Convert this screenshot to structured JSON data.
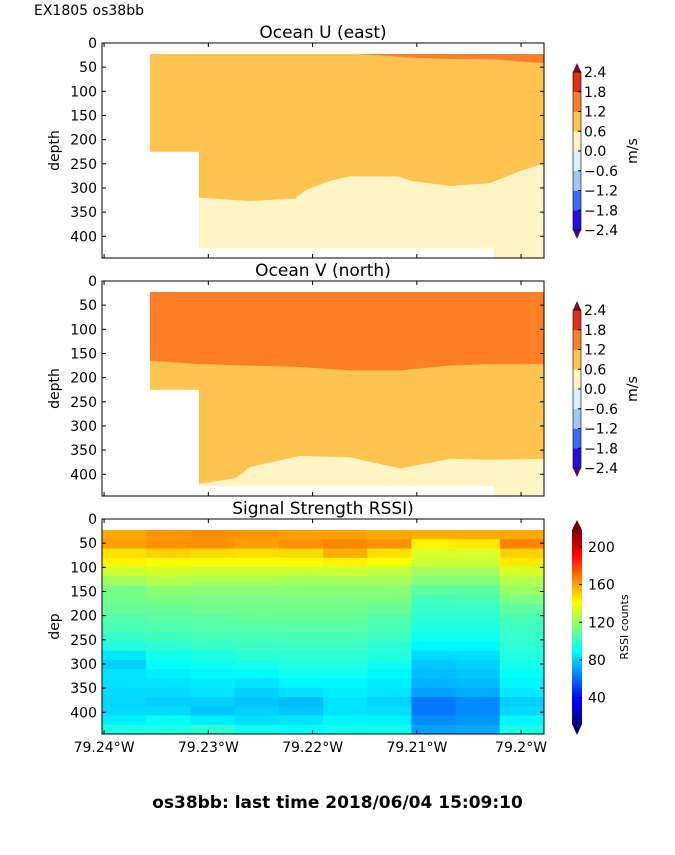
{
  "header": {
    "title": "EX1805 os38bb"
  },
  "footer": {
    "text": "os38bb: last time 2018/06/04 15:09:10"
  },
  "chart_data": [
    {
      "type": "area",
      "title": "Ocean U (east)",
      "ylabel": "depth",
      "xlim": [
        79.2402,
        79.1978
      ],
      "ylim": [
        445,
        0
      ],
      "yticks": [
        "0",
        "50",
        "100",
        "150",
        "200",
        "250",
        "300",
        "350",
        "400"
      ],
      "ytick_values": [
        0,
        50,
        100,
        150,
        200,
        250,
        300,
        350,
        400
      ],
      "xtick_values": [
        79.24,
        79.23,
        79.22,
        79.21,
        79.2
      ],
      "data_region": [
        [
          79.2356,
          22.8
        ],
        [
          79.1978,
          22.8
        ],
        [
          79.1978,
          445
        ],
        [
          79.2026,
          445
        ],
        [
          79.2026,
          425
        ],
        [
          79.2309,
          425
        ],
        [
          79.2309,
          225
        ],
        [
          79.2356,
          225
        ]
      ],
      "bands": [
        {
          "range": [
            0.0,
            0.6
          ],
          "color": "#fff5c4",
          "lower_boundary": "bottom"
        },
        {
          "range": [
            0.6,
            1.2
          ],
          "color": "#ffc34f",
          "lower_boundary": [
            [
              79.2356,
              320
            ],
            [
              79.2309,
              320
            ],
            [
              79.226,
              327
            ],
            [
              79.2217,
              322
            ],
            [
              79.2207,
              305
            ],
            [
              79.2183,
              285
            ],
            [
              79.2164,
              276
            ],
            [
              79.2118,
              276
            ],
            [
              79.2106,
              285
            ],
            [
              79.2068,
              296
            ],
            [
              79.203,
              290
            ],
            [
              79.2001,
              265
            ],
            [
              79.1978,
              250
            ]
          ]
        },
        {
          "range": [
            1.2,
            1.8
          ],
          "color": "#fe7f26",
          "lower_boundary": [
            [
              79.2356,
              22.8
            ],
            [
              79.2156,
              22.8
            ],
            [
              79.2106,
              30
            ],
            [
              79.2068,
              33
            ],
            [
              79.2026,
              34
            ],
            [
              79.1978,
              42
            ]
          ]
        }
      ],
      "colorbar": {
        "label": "m/s",
        "ticks": [
          "2.4",
          "1.8",
          "1.2",
          "0.6",
          "0.0",
          "−0.6",
          "−1.2",
          "−1.8",
          "−2.4"
        ],
        "levels": [
          -2.4,
          -1.8,
          -1.2,
          -0.6,
          0,
          0.6,
          1.2,
          1.8,
          2.4
        ],
        "colors": [
          "#2a0fe0",
          "#3b6cf6",
          "#9cc8f8",
          "#d8f0fc",
          "#fff5c4",
          "#ffc34f",
          "#fe7f26",
          "#e0301a"
        ],
        "under": "#4a0a7a",
        "over": "#7a0a2a"
      }
    },
    {
      "type": "area",
      "title": "Ocean V (north)",
      "ylabel": "depth",
      "xlim": [
        79.2402,
        79.1978
      ],
      "ylim": [
        445,
        0
      ],
      "yticks": [
        "0",
        "50",
        "100",
        "150",
        "200",
        "250",
        "300",
        "350",
        "400"
      ],
      "ytick_values": [
        0,
        50,
        100,
        150,
        200,
        250,
        300,
        350,
        400
      ],
      "xtick_values": [
        79.24,
        79.23,
        79.22,
        79.21,
        79.2
      ],
      "data_region": [
        [
          79.2356,
          22.8
        ],
        [
          79.1978,
          22.8
        ],
        [
          79.1978,
          445
        ],
        [
          79.2026,
          445
        ],
        [
          79.2026,
          425
        ],
        [
          79.2309,
          425
        ],
        [
          79.2309,
          225
        ],
        [
          79.2356,
          225
        ]
      ],
      "bands": [
        {
          "range": [
            0.0,
            0.6
          ],
          "color": "#fff5c4",
          "lower_boundary": "bottom"
        },
        {
          "range": [
            0.6,
            1.2
          ],
          "color": "#ffc34f",
          "lower_boundary": [
            [
              79.2356,
              420
            ],
            [
              79.2309,
              420
            ],
            [
              79.2274,
              408
            ],
            [
              79.226,
              385
            ],
            [
              79.2212,
              362
            ],
            [
              79.2164,
              365
            ],
            [
              79.2116,
              388
            ],
            [
              79.2068,
              368
            ],
            [
              79.203,
              370
            ],
            [
              79.1978,
              368
            ]
          ]
        },
        {
          "range": [
            1.2,
            1.8
          ],
          "color": "#fe7f26",
          "lower_boundary": [
            [
              79.2356,
              165
            ],
            [
              79.2309,
              172
            ],
            [
              79.2212,
              178
            ],
            [
              79.2164,
              185
            ],
            [
              79.2116,
              185
            ],
            [
              79.2068,
              175
            ],
            [
              79.203,
              172
            ],
            [
              79.1978,
              172
            ]
          ]
        }
      ],
      "colorbar": {
        "label": "m/s",
        "ticks": [
          "2.4",
          "1.8",
          "1.2",
          "0.6",
          "0.0",
          "−0.6",
          "−1.2",
          "−1.8",
          "−2.4"
        ],
        "levels": [
          -2.4,
          -1.8,
          -1.2,
          -0.6,
          0,
          0.6,
          1.2,
          1.8,
          2.4
        ],
        "colors": [
          "#2a0fe0",
          "#3b6cf6",
          "#9cc8f8",
          "#d8f0fc",
          "#fff5c4",
          "#ffc34f",
          "#fe7f26",
          "#e0301a"
        ],
        "under": "#4a0a7a",
        "over": "#7a0a2a"
      }
    },
    {
      "type": "heatmap",
      "title": "Signal Strength RSSI)",
      "ylabel": "dep",
      "xlim": [
        79.2402,
        79.1978
      ],
      "ylim": [
        445,
        0
      ],
      "yticks": [
        "0",
        "50",
        "100",
        "150",
        "200",
        "250",
        "300",
        "350",
        "400"
      ],
      "ytick_values": [
        0,
        50,
        100,
        150,
        200,
        250,
        300,
        350,
        400
      ],
      "xticks": [
        "79.24°W",
        "79.23°W",
        "79.22°W",
        "79.21°W",
        "79.2°W"
      ],
      "xtick_values": [
        79.24,
        79.23,
        79.22,
        79.21,
        79.2
      ],
      "depth_bin_start": 22.8,
      "depth_bin_size": 19.2,
      "n_columns": 10,
      "values": [
        [
          158,
          162,
          163,
          162,
          160,
          160,
          158,
          157,
          157,
          158
        ],
        [
          160,
          163,
          163,
          160,
          163,
          165,
          163,
          143,
          145,
          166
        ],
        [
          147,
          150,
          148,
          147,
          148,
          157,
          147,
          133,
          133,
          150
        ],
        [
          143,
          140,
          140,
          140,
          140,
          143,
          140,
          130,
          130,
          145
        ],
        [
          130,
          132,
          130,
          130,
          130,
          130,
          128,
          122,
          122,
          133
        ],
        [
          122,
          125,
          123,
          123,
          122,
          122,
          122,
          116,
          116,
          125
        ],
        [
          113,
          118,
          117,
          117,
          117,
          117,
          117,
          108,
          108,
          120
        ],
        [
          112,
          114,
          114,
          114,
          114,
          114,
          114,
          103,
          104,
          114
        ],
        [
          110,
          110,
          112,
          112,
          112,
          112,
          110,
          100,
          100,
          108
        ],
        [
          106,
          108,
          108,
          110,
          110,
          110,
          106,
          98,
          98,
          104
        ],
        [
          104,
          105,
          106,
          106,
          107,
          107,
          104,
          95,
          95,
          102
        ],
        [
          100,
          102,
          104,
          104,
          104,
          104,
          102,
          92,
          92,
          100
        ],
        [
          96,
          98,
          100,
          101,
          101,
          101,
          98,
          88,
          88,
          98
        ],
        [
          85,
          93,
          95,
          98,
          98,
          98,
          96,
          82,
          83,
          96
        ],
        [
          80,
          90,
          92,
          93,
          95,
          95,
          92,
          78,
          80,
          93
        ],
        [
          84,
          86,
          88,
          88,
          92,
          92,
          88,
          76,
          78,
          90
        ],
        [
          83,
          84,
          86,
          84,
          88,
          88,
          86,
          74,
          76,
          88
        ],
        [
          82,
          82,
          84,
          80,
          83,
          86,
          84,
          70,
          72,
          85
        ],
        [
          81,
          80,
          80,
          78,
          76,
          84,
          81,
          62,
          66,
          80
        ],
        [
          82,
          82,
          78,
          80,
          78,
          84,
          83,
          62,
          66,
          82
        ],
        [
          86,
          90,
          86,
          83,
          84,
          88,
          87,
          66,
          68,
          88
        ],
        [
          95,
          95,
          98,
          92,
          90,
          92,
          92,
          70,
          72,
          94
        ]
      ],
      "colorbar": {
        "label": "RSSI counts",
        "ticks": [
          "200",
          "160",
          "120",
          "80",
          "40"
        ],
        "tick_values": [
          200,
          160,
          120,
          80,
          40
        ],
        "clim": [
          12,
          218
        ],
        "colormap": "jet"
      }
    }
  ]
}
